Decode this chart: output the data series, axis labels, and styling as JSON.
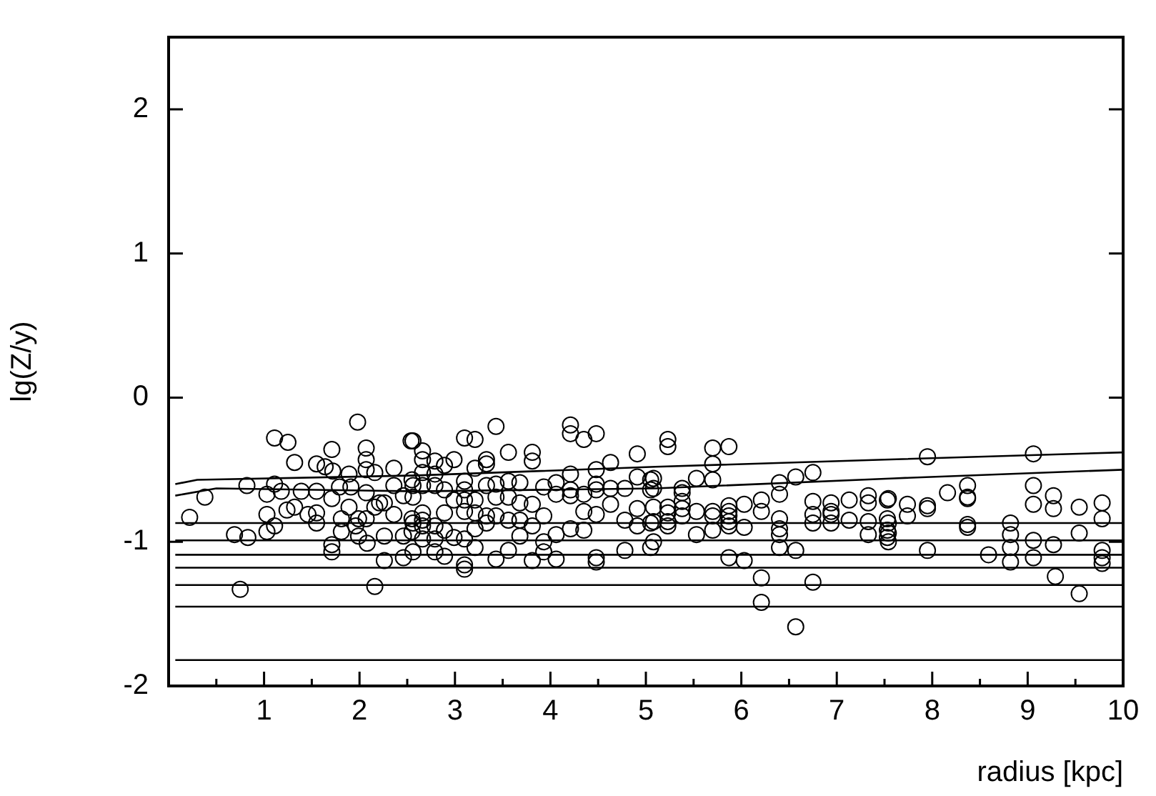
{
  "chart_data": {
    "type": "scatter",
    "xlabel": "radius [kpc]",
    "ylabel": "lg(Z/y)",
    "xlim": [
      0,
      10
    ],
    "ylim": [
      -2,
      2.5
    ],
    "xticks": [
      {
        "value": 0.5,
        "label": null
      },
      1,
      {
        "value": 1.5,
        "label": null
      },
      2,
      {
        "value": 2.5,
        "label": null
      },
      3,
      {
        "value": 3.5,
        "label": null
      },
      4,
      {
        "value": 4.5,
        "label": null
      },
      5,
      {
        "value": 5.5,
        "label": null
      },
      6,
      {
        "value": 6.5,
        "label": null
      },
      7,
      {
        "value": 7.5,
        "label": null
      },
      8,
      {
        "value": 8.5,
        "label": null
      },
      9,
      {
        "value": 9.5,
        "label": null
      },
      10
    ],
    "yticks": [
      -2,
      -1,
      0,
      1,
      2
    ],
    "grid": false,
    "legend": false,
    "line_style": "solid",
    "series": [
      {
        "marker": "circle",
        "color": "#000000",
        "x": [
          1.98,
          1.11,
          1.25,
          1.71,
          2.07,
          2.07,
          1.32,
          1.55,
          1.64,
          1.72,
          1.89,
          2.07,
          2.16,
          2.36,
          2.54,
          0.82,
          1.11,
          1.03,
          1.18,
          1.39,
          1.55,
          1.71,
          1.79,
          1.91,
          2.07,
          2.21,
          2.36,
          2.46,
          2.55,
          0.38,
          0.22,
          1.03,
          1.24,
          1.32,
          1.46,
          1.55,
          1.55,
          1.81,
          1.89,
          1.96,
          1.99,
          2.07,
          2.16,
          2.26,
          2.36,
          2.55,
          0.69,
          0.83,
          1.03,
          1.11,
          1.71,
          1.71,
          1.81,
          1.99,
          2.08,
          2.26,
          2.26,
          2.46,
          2.46,
          2.55,
          0.75,
          2.16,
          3.43,
          3.1,
          3.21,
          4.21,
          4.21,
          4.35,
          4.48,
          2.56,
          2.66,
          2.66,
          3.56,
          3.81,
          3.81,
          4.91,
          2.99,
          2.79,
          2.89,
          3.33,
          3.33,
          3.21,
          4.48,
          4.63,
          4.91,
          2.66,
          2.79,
          4.21,
          4.48,
          2.56,
          2.66,
          2.79,
          2.89,
          3.1,
          3.1,
          3.33,
          3.43,
          3.56,
          3.68,
          3.93,
          4.06,
          4.21,
          4.21,
          4.35,
          4.48,
          4.63,
          4.63,
          4.78,
          5.05,
          5.05,
          2.99,
          3.1,
          3.21,
          3.43,
          3.56,
          3.68,
          3.81,
          4.06,
          2.56,
          2.66,
          2.66,
          2.66,
          2.89,
          3.1,
          3.21,
          3.33,
          3.33,
          3.43,
          3.56,
          3.68,
          3.93,
          3.81,
          4.35,
          4.48,
          4.78,
          4.91,
          4.91,
          5.05,
          2.56,
          2.79,
          2.89,
          3.21,
          4.21,
          4.35,
          2.99,
          3.1,
          2.79,
          2.66,
          3.68,
          3.93,
          4.06,
          3.21,
          3.56,
          2.56,
          2.79,
          2.89,
          3.93,
          3.43,
          3.81,
          4.06,
          4.78,
          5.05,
          4.48,
          4.48,
          3.1,
          3.1,
          5.23,
          5.23,
          5.7,
          5.87,
          5.7,
          5.08,
          5.08,
          5.38,
          5.38,
          5.53,
          5.7,
          6.4,
          6.4,
          6.57,
          6.75,
          5.08,
          5.23,
          5.23,
          5.38,
          5.38,
          5.53,
          5.7,
          5.87,
          5.87,
          6.03,
          6.21,
          6.21,
          6.75,
          6.94,
          6.94,
          7.13,
          7.33,
          7.33,
          7.53,
          5.08,
          5.23,
          5.38,
          5.7,
          5.87,
          5.87,
          6.4,
          6.75,
          6.94,
          7.13,
          7.33,
          7.53,
          5.23,
          5.53,
          5.7,
          5.87,
          6.03,
          6.4,
          6.4,
          6.75,
          6.94,
          7.33,
          7.53,
          7.53,
          5.08,
          6.4,
          6.57,
          5.87,
          6.03,
          6.21,
          6.75,
          6.21,
          6.57,
          7.95,
          9.06,
          7.54,
          7.74,
          7.74,
          7.95,
          7.95,
          8.16,
          8.37,
          8.37,
          8.37,
          9.06,
          9.06,
          9.27,
          9.27,
          9.54,
          9.78,
          9.78,
          7.54,
          7.54,
          7.54,
          8.37,
          8.37,
          8.82,
          8.82,
          8.82,
          8.82,
          9.06,
          9.06,
          9.27,
          9.54,
          7.95,
          8.59,
          9.78,
          9.78,
          9.78,
          9.29,
          9.54
        ],
        "values": [
          -0.17,
          -0.28,
          -0.31,
          -0.36,
          -0.35,
          -0.43,
          -0.45,
          -0.46,
          -0.48,
          -0.51,
          -0.53,
          -0.5,
          -0.52,
          -0.49,
          -0.3,
          -0.61,
          -0.6,
          -0.67,
          -0.65,
          -0.65,
          -0.65,
          -0.7,
          -0.62,
          -0.62,
          -0.66,
          -0.73,
          -0.61,
          -0.68,
          -0.57,
          -0.69,
          -0.83,
          -0.81,
          -0.78,
          -0.76,
          -0.81,
          -0.8,
          -0.87,
          -0.84,
          -0.76,
          -0.89,
          -0.84,
          -0.84,
          -0.76,
          -0.73,
          -0.81,
          -0.84,
          -0.95,
          -0.97,
          -0.93,
          -0.89,
          -1.02,
          -1.07,
          -0.93,
          -0.96,
          -1.01,
          -0.96,
          -1.13,
          -0.96,
          -1.11,
          -0.93,
          -1.33,
          -1.31,
          -0.2,
          -0.28,
          -0.29,
          -0.19,
          -0.25,
          -0.29,
          -0.25,
          -0.3,
          -0.37,
          -0.43,
          -0.38,
          -0.38,
          -0.44,
          -0.39,
          -0.43,
          -0.44,
          -0.47,
          -0.43,
          -0.46,
          -0.49,
          -0.5,
          -0.45,
          -0.55,
          -0.52,
          -0.53,
          -0.53,
          -0.6,
          -0.61,
          -0.61,
          -0.61,
          -0.64,
          -0.58,
          -0.64,
          -0.61,
          -0.6,
          -0.58,
          -0.59,
          -0.62,
          -0.59,
          -0.64,
          -0.68,
          -0.67,
          -0.64,
          -0.63,
          -0.74,
          -0.63,
          -0.57,
          -0.64,
          -0.71,
          -0.71,
          -0.71,
          -0.69,
          -0.69,
          -0.73,
          -0.74,
          -0.67,
          -0.69,
          -0.8,
          -0.85,
          -0.89,
          -0.8,
          -0.79,
          -0.8,
          -0.82,
          -0.87,
          -0.82,
          -0.85,
          -0.85,
          -0.82,
          -0.89,
          -0.79,
          -0.81,
          -0.85,
          -0.77,
          -0.89,
          -0.87,
          -0.87,
          -0.89,
          -0.92,
          -0.91,
          -0.91,
          -0.92,
          -0.97,
          -0.98,
          -0.98,
          -0.98,
          -0.96,
          -1.0,
          -0.95,
          -1.04,
          -1.06,
          -1.07,
          -1.07,
          -1.1,
          -1.07,
          -1.12,
          -1.13,
          -1.12,
          -1.06,
          -1.04,
          -1.11,
          -1.14,
          -1.16,
          -1.19,
          -0.29,
          -0.34,
          -0.35,
          -0.34,
          -0.46,
          -0.56,
          -0.63,
          -0.63,
          -0.66,
          -0.56,
          -0.57,
          -0.59,
          -0.67,
          -0.55,
          -0.52,
          -0.76,
          -0.76,
          -0.8,
          -0.72,
          -0.77,
          -0.79,
          -0.79,
          -0.75,
          -0.79,
          -0.74,
          -0.71,
          -0.79,
          -0.72,
          -0.73,
          -0.79,
          -0.71,
          -0.68,
          -0.73,
          -0.71,
          -0.86,
          -0.86,
          -0.82,
          -0.82,
          -0.82,
          -0.86,
          -0.84,
          -0.81,
          -0.81,
          -0.85,
          -0.86,
          -0.84,
          -0.89,
          -0.95,
          -0.92,
          -0.89,
          -0.9,
          -0.91,
          -0.95,
          -0.87,
          -0.87,
          -0.95,
          -0.92,
          -0.97,
          -1.0,
          -1.04,
          -1.06,
          -1.11,
          -1.13,
          -1.25,
          -1.28,
          -1.42,
          -1.59,
          -0.41,
          -0.39,
          -0.7,
          -0.74,
          -0.82,
          -0.75,
          -0.77,
          -0.66,
          -0.61,
          -0.69,
          -0.7,
          -0.61,
          -0.74,
          -0.68,
          -0.77,
          -0.76,
          -0.73,
          -0.84,
          -0.87,
          -0.94,
          -1.0,
          -0.88,
          -0.9,
          -0.87,
          -0.95,
          -1.04,
          -1.14,
          -0.99,
          -1.11,
          -1.02,
          -0.94,
          -1.06,
          -1.09,
          -1.06,
          -1.11,
          -1.15,
          -1.24,
          -1.36
        ]
      },
      {
        "type": "line",
        "marker": "none",
        "color": "#000000",
        "x": [
          0.07,
          0.3,
          2.6,
          5.1,
          7.5,
          10
        ],
        "values": [
          -0.6,
          -0.57,
          -0.54,
          -0.48,
          -0.43,
          -0.38
        ]
      },
      {
        "type": "line",
        "marker": "none",
        "color": "#000000",
        "x": [
          0.07,
          0.5,
          2.6,
          5.1,
          7.6,
          10
        ],
        "values": [
          -0.68,
          -0.63,
          -0.65,
          -0.63,
          -0.56,
          -0.5
        ]
      },
      {
        "type": "line",
        "marker": "none",
        "color": "#000000",
        "x": [
          0.07,
          10
        ],
        "values": [
          -0.87,
          -0.87
        ]
      },
      {
        "type": "line",
        "marker": "none",
        "color": "#000000",
        "x": [
          0.07,
          10
        ],
        "values": [
          -0.99,
          -0.99
        ]
      },
      {
        "type": "line",
        "marker": "none",
        "color": "#000000",
        "x": [
          0.07,
          10
        ],
        "values": [
          -1.09,
          -1.09
        ]
      },
      {
        "type": "line",
        "marker": "none",
        "color": "#000000",
        "x": [
          0.07,
          10
        ],
        "values": [
          -1.18,
          -1.18
        ]
      },
      {
        "type": "line",
        "marker": "none",
        "color": "#000000",
        "x": [
          0.07,
          10
        ],
        "values": [
          -1.3,
          -1.3
        ]
      },
      {
        "type": "line",
        "marker": "none",
        "color": "#000000",
        "x": [
          0.07,
          10
        ],
        "values": [
          -1.45,
          -1.45
        ]
      },
      {
        "type": "line",
        "marker": "none",
        "color": "#000000",
        "x": [
          0.07,
          10
        ],
        "values": [
          -1.82,
          -1.82
        ]
      }
    ]
  }
}
